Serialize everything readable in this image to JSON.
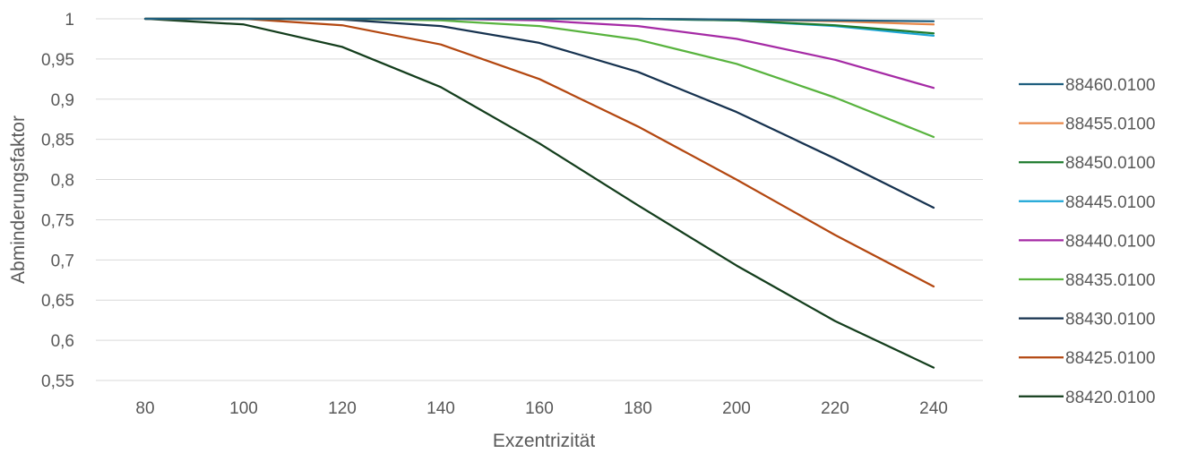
{
  "chart_data": {
    "type": "line",
    "title": "",
    "xlabel": "Exzentrizität",
    "ylabel": "Abminderungsfaktor",
    "x": [
      "80",
      "100",
      "120",
      "140",
      "160",
      "180",
      "200",
      "220",
      "240"
    ],
    "ylim": [
      0.55,
      1
    ],
    "yticks": [
      "0,55",
      "0,6",
      "0,65",
      "0,7",
      "0,75",
      "0,8",
      "0,85",
      "0,9",
      "0,95",
      "1"
    ],
    "grid": "horizontal",
    "legend_position": "right",
    "series": [
      {
        "name": "88460.0100",
        "color": "#1f5f7f",
        "values": [
          1,
          1,
          1,
          1,
          1,
          1,
          0.999,
          0.998,
          0.997
        ]
      },
      {
        "name": "88455.0100",
        "color": "#e8884a",
        "values": [
          1,
          1,
          1,
          1,
          1,
          1,
          0.999,
          0.997,
          0.993
        ]
      },
      {
        "name": "88450.0100",
        "color": "#1e7b2e",
        "values": [
          1,
          1,
          1,
          1,
          1,
          1,
          0.998,
          0.992,
          0.982
        ]
      },
      {
        "name": "88445.0100",
        "color": "#1da6d6",
        "values": [
          1,
          1,
          1,
          1,
          1,
          1,
          0.998,
          0.991,
          0.979
        ]
      },
      {
        "name": "88440.0100",
        "color": "#a52aa5",
        "values": [
          1,
          1,
          1,
          1,
          0.998,
          0.991,
          0.975,
          0.949,
          0.914
        ]
      },
      {
        "name": "88435.0100",
        "color": "#58b33e",
        "values": [
          1,
          1,
          1,
          0.998,
          0.991,
          0.974,
          0.944,
          0.902,
          0.853
        ]
      },
      {
        "name": "88430.0100",
        "color": "#16324f",
        "values": [
          1,
          1,
          0.999,
          0.991,
          0.97,
          0.934,
          0.884,
          0.826,
          0.765
        ]
      },
      {
        "name": "88425.0100",
        "color": "#b34710",
        "values": [
          1,
          1,
          0.992,
          0.968,
          0.925,
          0.866,
          0.8,
          0.731,
          0.667
        ]
      },
      {
        "name": "88420.0100",
        "color": "#133d1c",
        "values": [
          1,
          0.993,
          0.965,
          0.915,
          0.845,
          0.768,
          0.693,
          0.624,
          0.566
        ]
      }
    ]
  }
}
